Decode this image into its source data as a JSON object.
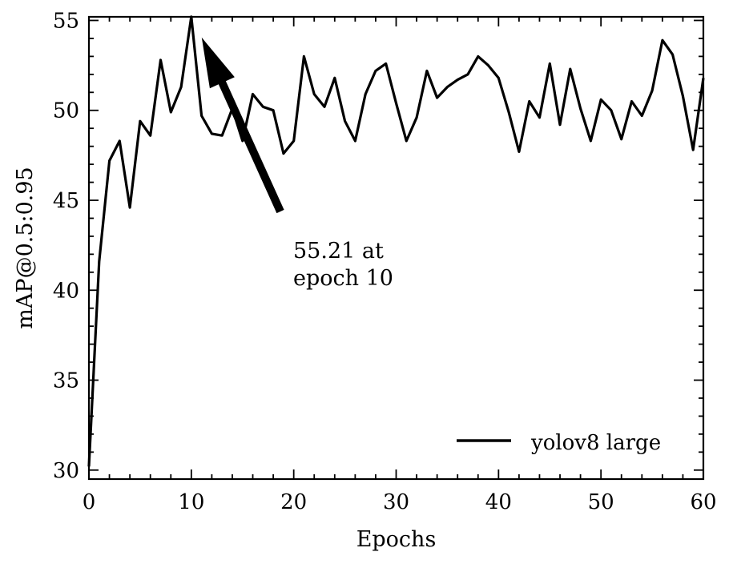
{
  "chart_data": {
    "type": "line",
    "xlabel": "Epochs",
    "ylabel": "mAP@0.5:0.95",
    "xlim": [
      0,
      60
    ],
    "ylim": [
      29.5,
      55.2
    ],
    "xticks": [
      0,
      10,
      20,
      30,
      40,
      50,
      60
    ],
    "yticks": [
      30,
      35,
      40,
      45,
      50,
      55
    ],
    "grid": false,
    "legend_position": "lower-right",
    "series": [
      {
        "name": "yolov8 large",
        "color": "#000000",
        "x": [
          0,
          1,
          2,
          3,
          4,
          5,
          6,
          7,
          8,
          9,
          10,
          11,
          12,
          13,
          14,
          15,
          16,
          17,
          18,
          19,
          20,
          21,
          22,
          23,
          24,
          25,
          26,
          27,
          28,
          29,
          30,
          31,
          32,
          33,
          34,
          35,
          36,
          37,
          38,
          39,
          40,
          41,
          42,
          43,
          44,
          45,
          46,
          47,
          48,
          49,
          50,
          51,
          52,
          53,
          54,
          55,
          56,
          57,
          58,
          59,
          60
        ],
        "y": [
          30.2,
          41.6,
          47.2,
          48.3,
          44.6,
          49.4,
          48.6,
          52.8,
          49.9,
          51.3,
          55.21,
          49.7,
          48.7,
          48.6,
          50.1,
          48.3,
          50.9,
          50.2,
          50.0,
          47.6,
          48.3,
          53.0,
          50.9,
          50.2,
          51.8,
          49.4,
          48.3,
          50.9,
          52.2,
          52.6,
          50.4,
          48.3,
          49.6,
          52.2,
          50.7,
          51.3,
          51.7,
          52.0,
          53.0,
          52.5,
          51.8,
          49.9,
          47.7,
          50.5,
          49.6,
          52.6,
          49.2,
          52.3,
          50.1,
          48.3,
          50.6,
          50.0,
          48.4,
          50.5,
          49.7,
          51.1,
          53.9,
          53.1,
          50.8,
          47.8,
          51.8
        ]
      }
    ],
    "annotations": [
      {
        "text_lines": [
          "55.21 at",
          "epoch 10"
        ],
        "point": [
          10,
          55.21
        ],
        "arrow": true
      }
    ]
  }
}
